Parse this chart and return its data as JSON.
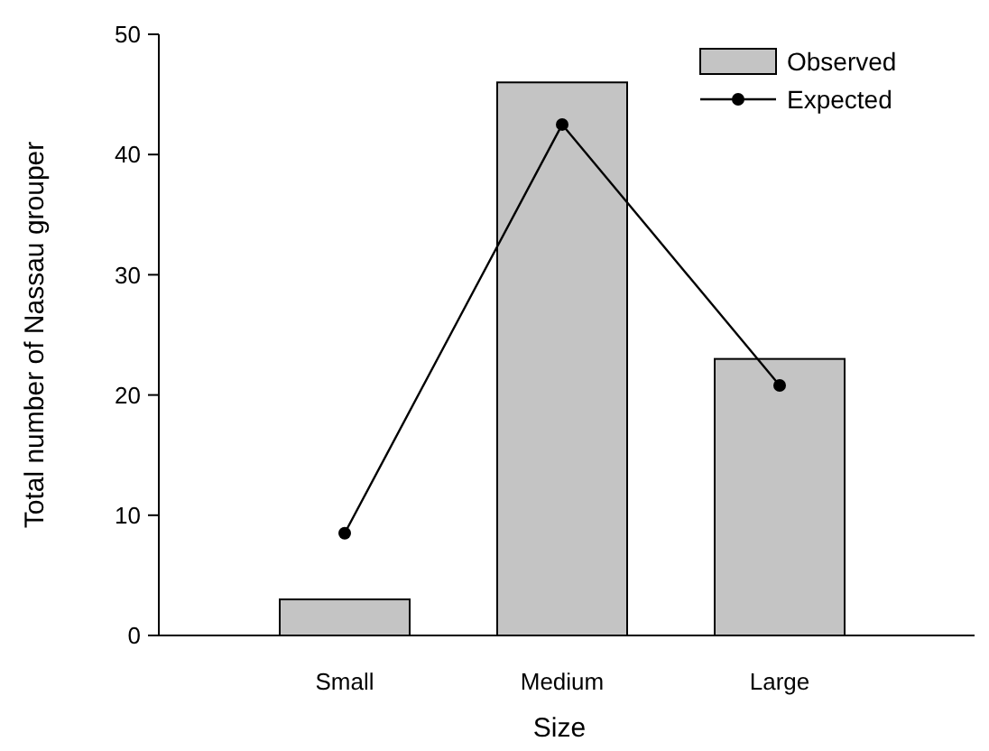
{
  "chart_data": {
    "type": "bar",
    "xlabel": "Size",
    "ylabel": "Total number of Nassau grouper",
    "categories": [
      "Small",
      "Medium",
      "Large"
    ],
    "series": [
      {
        "name": "Observed",
        "color": "#c4c4c4",
        "values": [
          3,
          46,
          23
        ]
      },
      {
        "name": "Expected",
        "type": "line",
        "color": "#000000",
        "values": [
          8.5,
          42.5,
          20.8
        ]
      }
    ],
    "ylim": [
      0,
      50
    ],
    "yticks": [
      0,
      10,
      20,
      30,
      40,
      50
    ],
    "marker": "circle",
    "legend": "top right",
    "grid": false
  }
}
